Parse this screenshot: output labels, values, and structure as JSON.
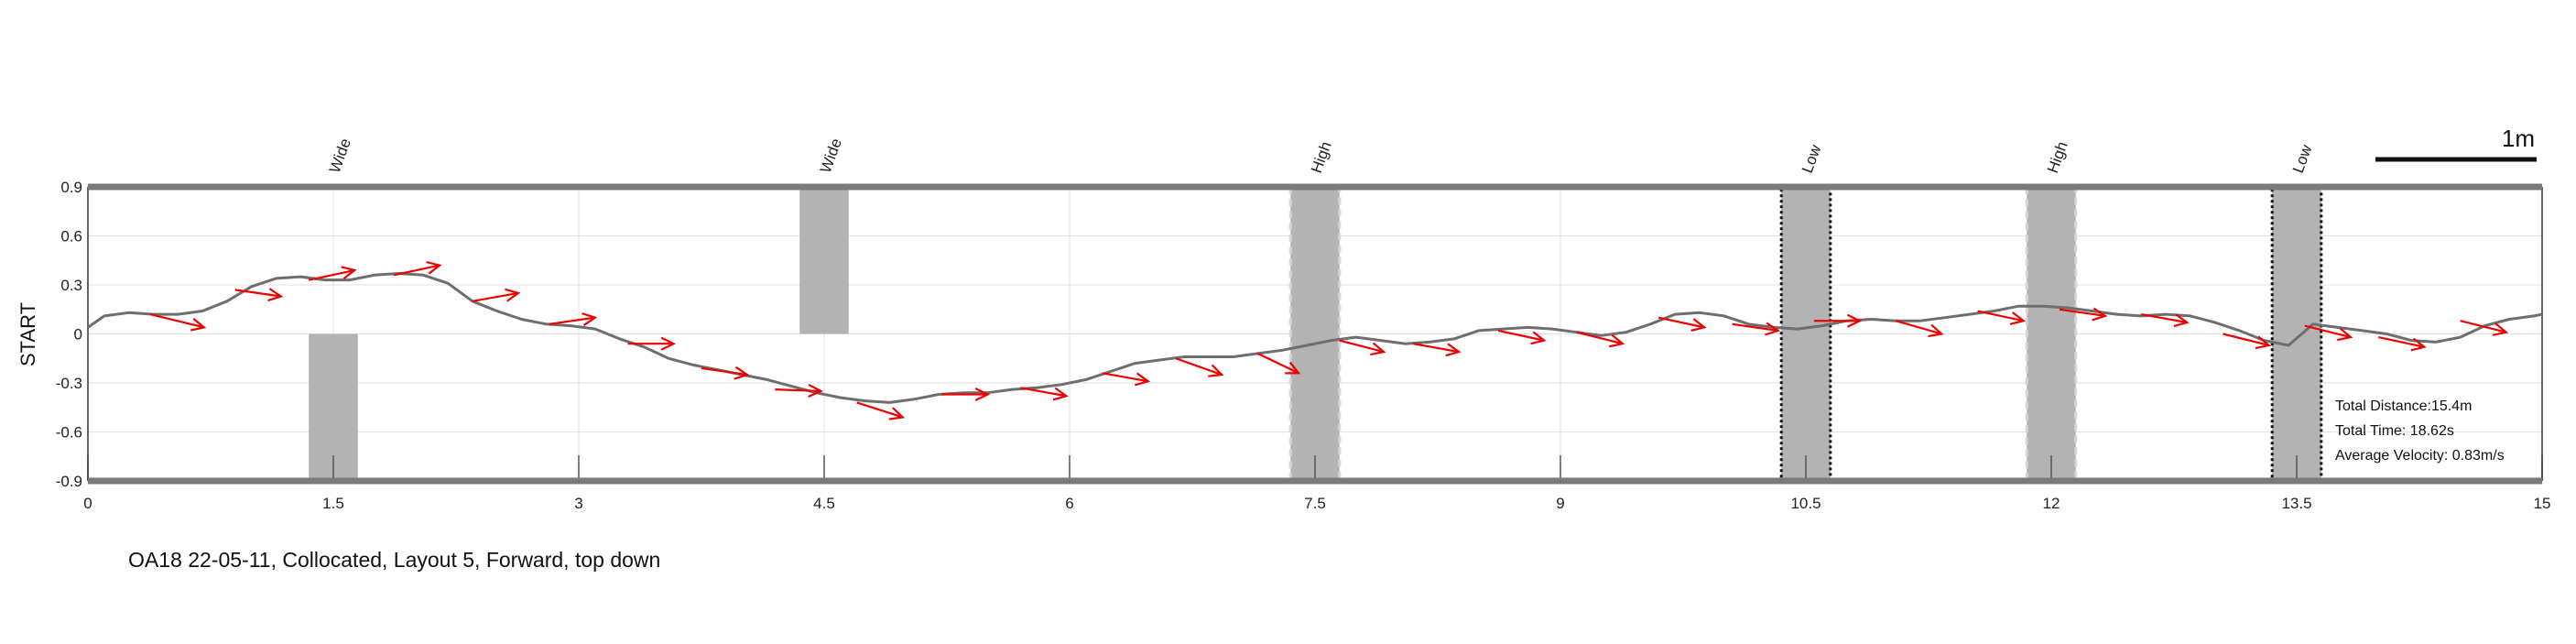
{
  "caption": "OA18 22-05-11, Collocated, Layout 5, Forward, top down",
  "chart_data": {
    "type": "line",
    "ylabel": "START",
    "xlim": [
      0,
      15
    ],
    "ylim": [
      -0.9,
      0.9
    ],
    "x_ticks": [
      "0",
      "1.5",
      "3",
      "4.5",
      "6",
      "7.5",
      "9",
      "10.5",
      "12",
      "13.5",
      "15"
    ],
    "y_ticks": [
      "0.9",
      "0.6",
      "0.3",
      "0",
      "-0.3",
      "-0.6",
      "-0.9"
    ],
    "grid": true,
    "scale_bar_label": "1m",
    "stats": {
      "distance": "Total Distance:15.4m",
      "time": "Total Time: 18.62s",
      "velocity": "Average Velocity: 0.83m/s"
    },
    "obstacles": [
      {
        "label": "Wide",
        "x0": 1.35,
        "x1": 1.65,
        "y0": -0.9,
        "y1": 0.0,
        "style": "solid"
      },
      {
        "label": "Wide",
        "x0": 4.35,
        "x1": 4.65,
        "y0": 0.0,
        "y1": 0.9,
        "style": "solid"
      },
      {
        "label": "High",
        "x0": 7.35,
        "x1": 7.65,
        "y0": -0.9,
        "y1": 0.9,
        "style": "dashed"
      },
      {
        "label": "Low",
        "x0": 10.35,
        "x1": 10.65,
        "y0": -0.9,
        "y1": 0.9,
        "style": "dotted"
      },
      {
        "label": "High",
        "x0": 11.85,
        "x1": 12.15,
        "y0": -0.9,
        "y1": 0.9,
        "style": "dashed"
      },
      {
        "label": "Low",
        "x0": 13.35,
        "x1": 13.65,
        "y0": -0.9,
        "y1": 0.9,
        "style": "dotted"
      }
    ],
    "series": [
      {
        "color": "#6e6e6e",
        "x": [
          0,
          0.1,
          0.25,
          0.4,
          0.55,
          0.7,
          0.85,
          1.0,
          1.15,
          1.3,
          1.45,
          1.6,
          1.75,
          1.9,
          2.05,
          2.2,
          2.35,
          2.5,
          2.65,
          2.8,
          2.95,
          3.1,
          3.25,
          3.4,
          3.55,
          3.7,
          3.85,
          4.0,
          4.15,
          4.3,
          4.45,
          4.6,
          4.75,
          4.9,
          5.05,
          5.2,
          5.35,
          5.5,
          5.65,
          5.8,
          5.95,
          6.1,
          6.25,
          6.4,
          6.55,
          6.7,
          6.85,
          7.0,
          7.15,
          7.3,
          7.45,
          7.6,
          7.75,
          7.9,
          8.05,
          8.2,
          8.35,
          8.5,
          8.65,
          8.8,
          8.95,
          9.1,
          9.25,
          9.4,
          9.55,
          9.7,
          9.85,
          10.0,
          10.15,
          10.3,
          10.45,
          10.6,
          10.75,
          10.9,
          11.05,
          11.2,
          11.35,
          11.5,
          11.65,
          11.8,
          11.95,
          12.1,
          12.25,
          12.4,
          12.55,
          12.7,
          12.85,
          13.0,
          13.15,
          13.3,
          13.45,
          13.6,
          13.75,
          13.9,
          14.05,
          14.2,
          14.35,
          14.5,
          14.65,
          14.8,
          14.95,
          15.0
        ],
        "y": [
          0.04,
          0.11,
          0.13,
          0.12,
          0.12,
          0.14,
          0.2,
          0.29,
          0.34,
          0.35,
          0.33,
          0.33,
          0.36,
          0.37,
          0.36,
          0.31,
          0.2,
          0.14,
          0.09,
          0.06,
          0.05,
          0.03,
          -0.03,
          -0.08,
          -0.15,
          -0.19,
          -0.22,
          -0.25,
          -0.28,
          -0.32,
          -0.36,
          -0.39,
          -0.41,
          -0.42,
          -0.4,
          -0.37,
          -0.36,
          -0.36,
          -0.34,
          -0.33,
          -0.31,
          -0.28,
          -0.23,
          -0.18,
          -0.16,
          -0.14,
          -0.14,
          -0.14,
          -0.12,
          -0.1,
          -0.07,
          -0.04,
          -0.02,
          -0.04,
          -0.06,
          -0.05,
          -0.03,
          0.02,
          0.03,
          0.04,
          0.03,
          0.01,
          -0.01,
          0.01,
          0.06,
          0.12,
          0.13,
          0.11,
          0.06,
          0.04,
          0.03,
          0.05,
          0.08,
          0.09,
          0.08,
          0.08,
          0.1,
          0.12,
          0.14,
          0.17,
          0.17,
          0.16,
          0.14,
          0.12,
          0.11,
          0.12,
          0.11,
          0.07,
          0.02,
          -0.04,
          -0.07,
          0.06,
          0.04,
          0.02,
          0.0,
          -0.04,
          -0.05,
          -0.02,
          0.05,
          0.09,
          0.11,
          0.12
        ]
      }
    ],
    "arrows": [
      {
        "x": 0.38,
        "y": 0.12,
        "dx": 0.33,
        "dy": -0.08
      },
      {
        "x": 0.9,
        "y": 0.27,
        "dx": 0.28,
        "dy": -0.04
      },
      {
        "x": 1.35,
        "y": 0.33,
        "dx": 0.28,
        "dy": 0.06
      },
      {
        "x": 1.87,
        "y": 0.36,
        "dx": 0.28,
        "dy": 0.06
      },
      {
        "x": 2.35,
        "y": 0.2,
        "dx": 0.28,
        "dy": 0.05
      },
      {
        "x": 2.82,
        "y": 0.06,
        "dx": 0.28,
        "dy": 0.04
      },
      {
        "x": 3.3,
        "y": -0.06,
        "dx": 0.28,
        "dy": 0.0
      },
      {
        "x": 3.75,
        "y": -0.21,
        "dx": 0.28,
        "dy": -0.04
      },
      {
        "x": 4.2,
        "y": -0.34,
        "dx": 0.28,
        "dy": -0.01
      },
      {
        "x": 4.7,
        "y": -0.42,
        "dx": 0.28,
        "dy": -0.09
      },
      {
        "x": 5.22,
        "y": -0.37,
        "dx": 0.28,
        "dy": 0.0
      },
      {
        "x": 5.7,
        "y": -0.33,
        "dx": 0.28,
        "dy": -0.05
      },
      {
        "x": 6.2,
        "y": -0.24,
        "dx": 0.28,
        "dy": -0.05
      },
      {
        "x": 6.65,
        "y": -0.15,
        "dx": 0.28,
        "dy": -0.1
      },
      {
        "x": 7.15,
        "y": -0.12,
        "dx": 0.25,
        "dy": -0.12
      },
      {
        "x": 7.65,
        "y": -0.04,
        "dx": 0.27,
        "dy": -0.07
      },
      {
        "x": 8.1,
        "y": -0.06,
        "dx": 0.28,
        "dy": -0.05
      },
      {
        "x": 8.62,
        "y": 0.02,
        "dx": 0.28,
        "dy": -0.06
      },
      {
        "x": 9.1,
        "y": 0.01,
        "dx": 0.28,
        "dy": -0.07
      },
      {
        "x": 9.6,
        "y": 0.1,
        "dx": 0.28,
        "dy": -0.06
      },
      {
        "x": 10.05,
        "y": 0.06,
        "dx": 0.28,
        "dy": -0.04
      },
      {
        "x": 10.55,
        "y": 0.08,
        "dx": 0.28,
        "dy": 0.0
      },
      {
        "x": 11.05,
        "y": 0.08,
        "dx": 0.28,
        "dy": -0.08
      },
      {
        "x": 11.55,
        "y": 0.14,
        "dx": 0.28,
        "dy": -0.06
      },
      {
        "x": 12.05,
        "y": 0.15,
        "dx": 0.28,
        "dy": -0.04
      },
      {
        "x": 12.55,
        "y": 0.12,
        "dx": 0.28,
        "dy": -0.05
      },
      {
        "x": 13.05,
        "y": 0.0,
        "dx": 0.28,
        "dy": -0.07
      },
      {
        "x": 13.55,
        "y": 0.05,
        "dx": 0.28,
        "dy": -0.07
      },
      {
        "x": 14.0,
        "y": -0.02,
        "dx": 0.28,
        "dy": -0.06
      },
      {
        "x": 14.5,
        "y": 0.08,
        "dx": 0.28,
        "dy": -0.07
      }
    ],
    "colors": {
      "path": "#6e6e6e",
      "arrow": "#ee0000",
      "obstacle": "#b3b3b3",
      "wall": "#7a7a7a",
      "grid": "#e2e2e2"
    }
  }
}
